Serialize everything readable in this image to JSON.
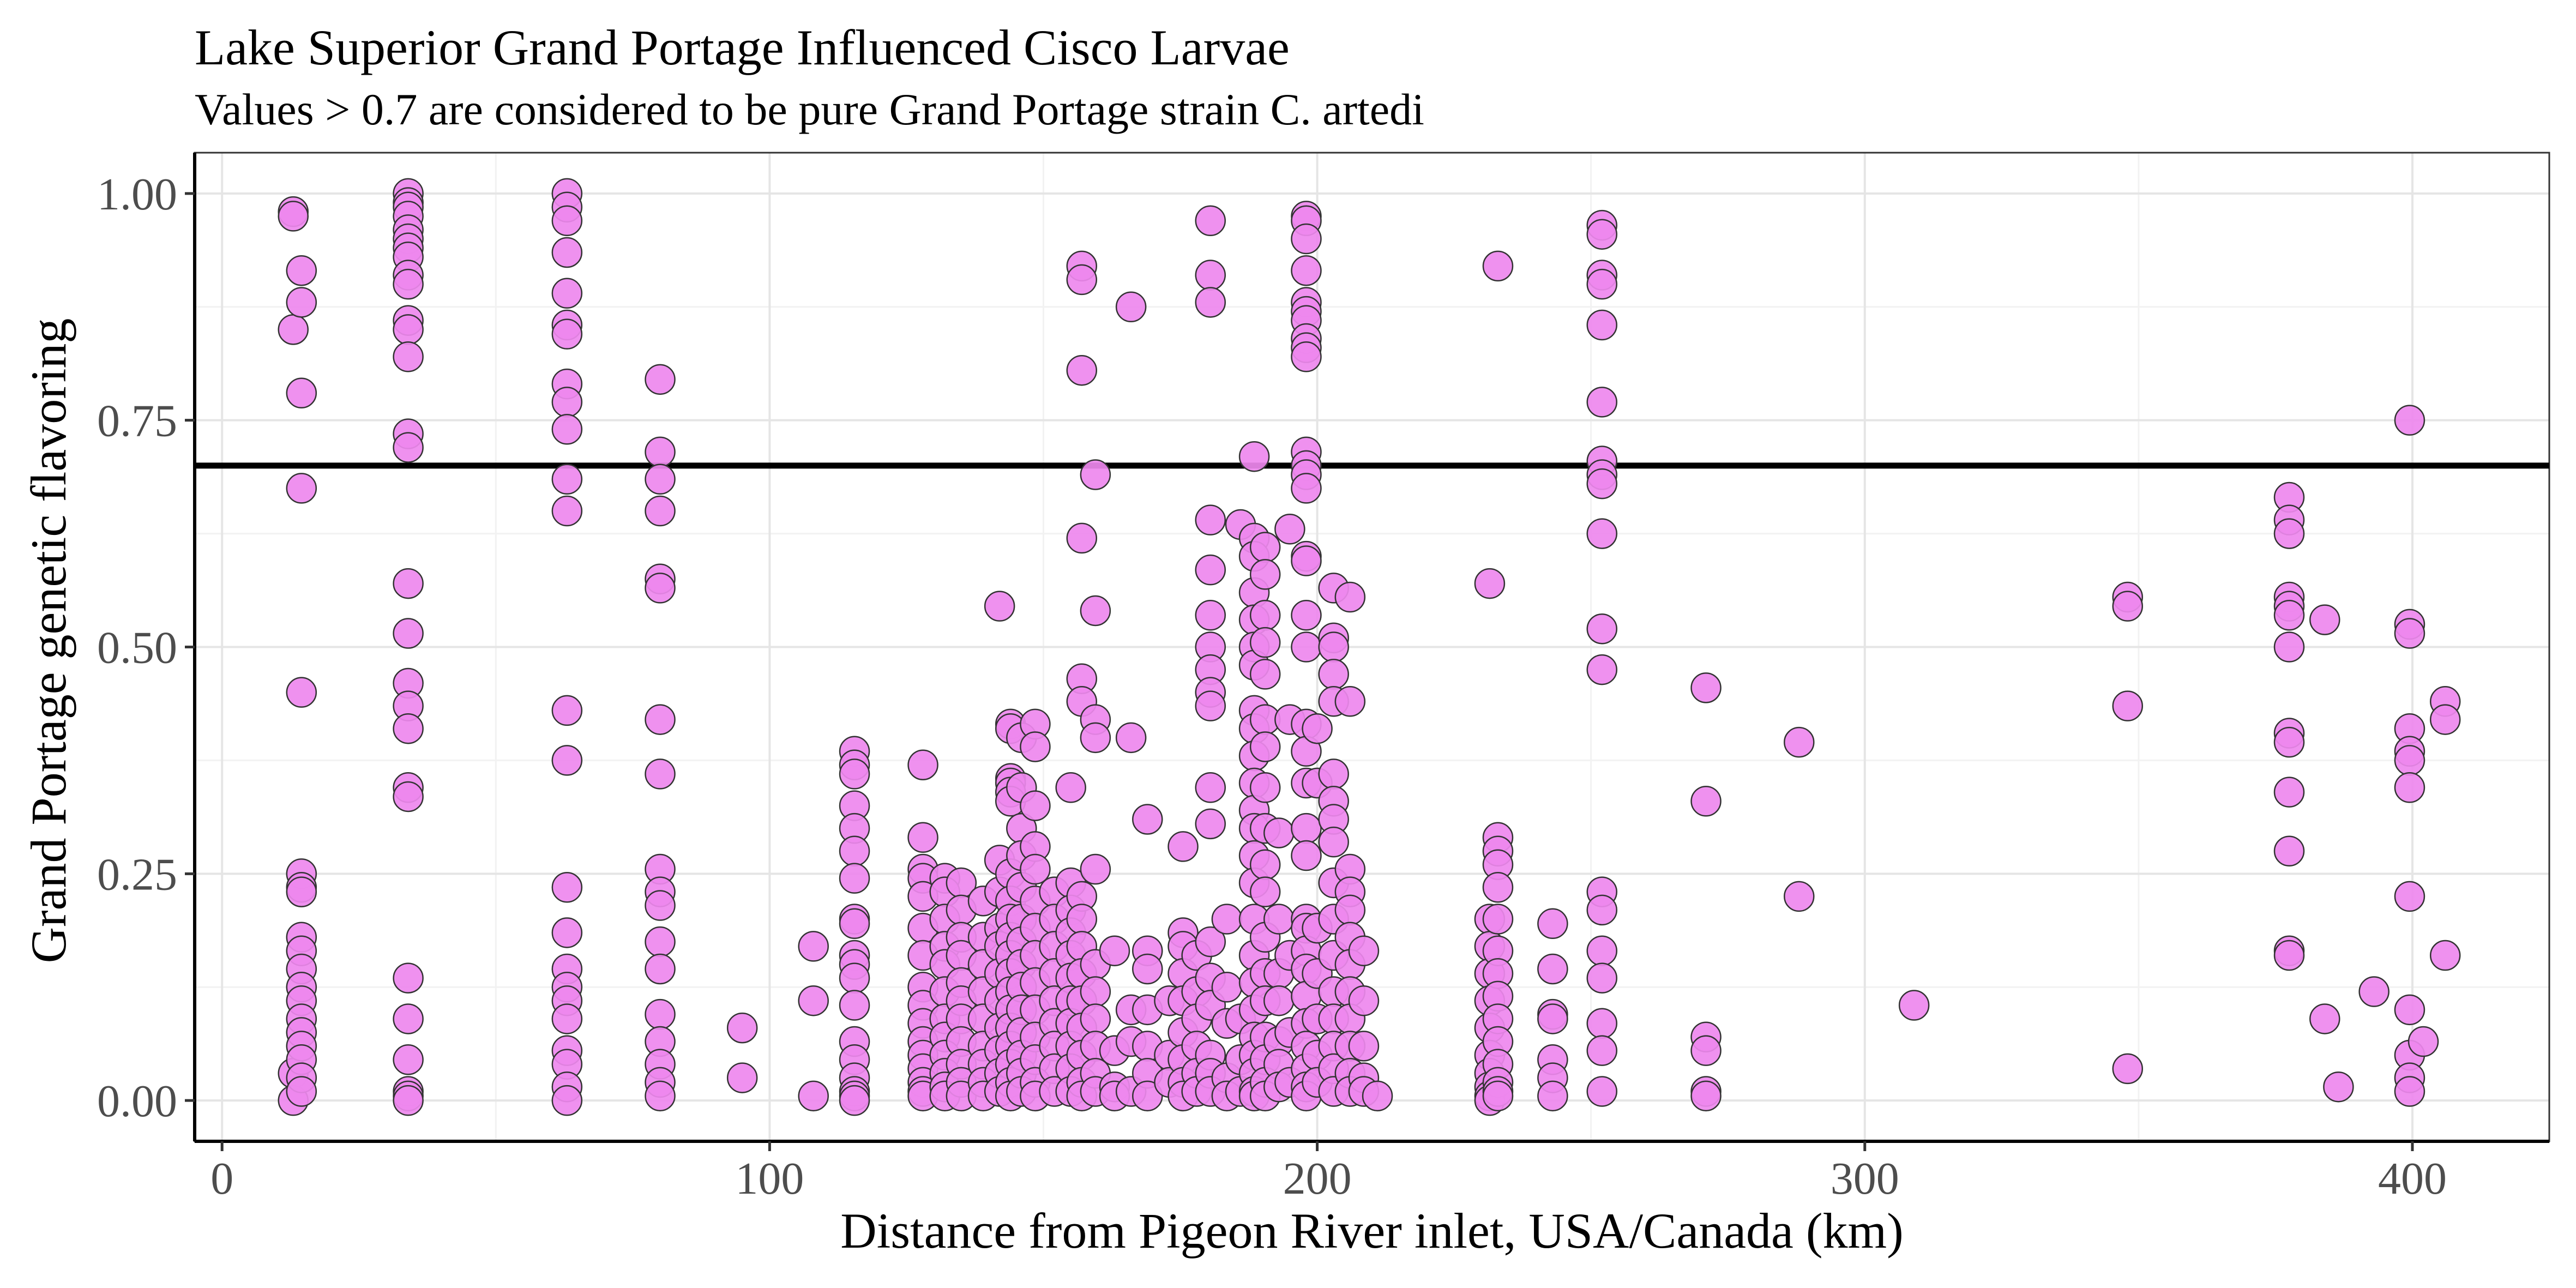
{
  "chart_data": {
    "type": "scatter",
    "title": "Lake Superior Grand Portage Influenced Cisco Larvae",
    "subtitle": "Values > 0.7 are considered to be pure Grand Portage strain C. artedi",
    "xlabel": "Distance from Pigeon River inlet, USA/Canada (km)",
    "ylabel": "Grand Portage genetic flavoring",
    "xlim": [
      -5,
      425
    ],
    "ylim": [
      -0.045,
      1.045
    ],
    "x_ticks": [
      0,
      100,
      200,
      300,
      400
    ],
    "x_tick_labels": [
      "0",
      "100",
      "200",
      "300",
      "400"
    ],
    "y_ticks": [
      0,
      0.25,
      0.5,
      0.75,
      1.0
    ],
    "y_tick_labels": [
      "0.00",
      "0.25",
      "0.50",
      "0.75",
      "1.00"
    ],
    "grid": true,
    "reference_line": {
      "y": 0.7,
      "color": "#000000"
    },
    "point_fill": "#ee88ee",
    "point_stroke": "#333333",
    "columns": [
      {
        "x": 13,
        "y": [
          0.98,
          0.975,
          0.85,
          0.03,
          0.0
        ]
      },
      {
        "x": 14.5,
        "y": [
          0.915,
          0.88,
          0.78,
          0.675,
          0.45,
          0.25,
          0.235,
          0.23,
          0.18,
          0.165,
          0.145,
          0.125,
          0.11,
          0.09,
          0.075,
          0.06,
          0.045,
          0.025,
          0.01
        ]
      },
      {
        "x": 34,
        "y": [
          1.0,
          0.99,
          0.985,
          0.975,
          0.96,
          0.95,
          0.94,
          0.93,
          0.91,
          0.9,
          0.86,
          0.85,
          0.82,
          0.735,
          0.72,
          0.57,
          0.515,
          0.46,
          0.435,
          0.41,
          0.345,
          0.335,
          0.135,
          0.09,
          0.045,
          0.01,
          0.005,
          0.0
        ]
      },
      {
        "x": 63,
        "y": [
          1.0,
          0.985,
          0.97,
          0.935,
          0.89,
          0.855,
          0.845,
          0.79,
          0.77,
          0.74,
          0.685,
          0.65,
          0.43,
          0.375,
          0.235,
          0.185,
          0.145,
          0.125,
          0.11,
          0.09,
          0.055,
          0.04,
          0.015,
          0.0
        ]
      },
      {
        "x": 80,
        "y": [
          0.795,
          0.715,
          0.685,
          0.65,
          0.575,
          0.565,
          0.42,
          0.36,
          0.255,
          0.23,
          0.215,
          0.175,
          0.145,
          0.095,
          0.065,
          0.04,
          0.02,
          0.005
        ]
      },
      {
        "x": 95,
        "y": [
          0.08,
          0.025
        ]
      },
      {
        "x": 108,
        "y": [
          0.17,
          0.11,
          0.005
        ]
      },
      {
        "x": 115.5,
        "y": [
          0.385,
          0.37,
          0.36,
          0.325,
          0.3,
          0.275,
          0.245,
          0.2,
          0.195,
          0.16,
          0.15,
          0.135,
          0.105,
          0.065,
          0.045,
          0.025,
          0.01,
          0.005,
          0.0
        ]
      },
      {
        "x": 128,
        "y": [
          0.37,
          0.29,
          0.255,
          0.245,
          0.225,
          0.19,
          0.16,
          0.125,
          0.105,
          0.085,
          0.065,
          0.05,
          0.035,
          0.02,
          0.01,
          0.005
        ]
      },
      {
        "x": 132,
        "y": [
          0.245,
          0.23,
          0.2,
          0.17,
          0.15,
          0.12,
          0.09,
          0.07,
          0.05,
          0.03,
          0.015,
          0.005
        ]
      },
      {
        "x": 135,
        "y": [
          0.24,
          0.21,
          0.18,
          0.16,
          0.13,
          0.11,
          0.09,
          0.065,
          0.04,
          0.02,
          0.005
        ]
      },
      {
        "x": 139,
        "y": [
          0.22,
          0.18,
          0.15,
          0.12,
          0.09,
          0.06,
          0.04,
          0.02,
          0.005
        ]
      },
      {
        "x": 142,
        "y": [
          0.545,
          0.265,
          0.23,
          0.19,
          0.17,
          0.14,
          0.11,
          0.08,
          0.055,
          0.03,
          0.01
        ]
      },
      {
        "x": 144,
        "y": [
          0.415,
          0.41,
          0.355,
          0.35,
          0.34,
          0.33,
          0.25,
          0.22,
          0.2,
          0.18,
          0.16,
          0.14,
          0.12,
          0.1,
          0.08,
          0.06,
          0.04,
          0.02,
          0.005
        ]
      },
      {
        "x": 146,
        "y": [
          0.4,
          0.345,
          0.3,
          0.27,
          0.235,
          0.2,
          0.175,
          0.15,
          0.125,
          0.1,
          0.075,
          0.05,
          0.03,
          0.01
        ]
      },
      {
        "x": 148.5,
        "y": [
          0.415,
          0.39,
          0.325,
          0.28,
          0.255,
          0.22,
          0.19,
          0.16,
          0.13,
          0.1,
          0.07,
          0.045,
          0.02,
          0.005
        ]
      },
      {
        "x": 152,
        "y": [
          0.23,
          0.2,
          0.17,
          0.14,
          0.11,
          0.085,
          0.06,
          0.035,
          0.01
        ]
      },
      {
        "x": 155,
        "y": [
          0.345,
          0.24,
          0.21,
          0.185,
          0.16,
          0.135,
          0.11,
          0.085,
          0.06,
          0.035,
          0.01
        ]
      },
      {
        "x": 157,
        "y": [
          0.92,
          0.905,
          0.805,
          0.62,
          0.465,
          0.44,
          0.225,
          0.2,
          0.17,
          0.14,
          0.11,
          0.08,
          0.05,
          0.02,
          0.005
        ]
      },
      {
        "x": 159.5,
        "y": [
          0.69,
          0.54,
          0.42,
          0.4,
          0.255,
          0.15,
          0.12,
          0.09,
          0.06,
          0.03,
          0.01
        ]
      },
      {
        "x": 163,
        "y": [
          0.165,
          0.055,
          0.015,
          0.005
        ]
      },
      {
        "x": 166,
        "y": [
          0.875,
          0.4,
          0.1,
          0.065,
          0.01
        ]
      },
      {
        "x": 169,
        "y": [
          0.31,
          0.165,
          0.145,
          0.1,
          0.06,
          0.03,
          0.005
        ]
      },
      {
        "x": 173,
        "y": [
          0.11,
          0.05,
          0.02
        ]
      },
      {
        "x": 175.5,
        "y": [
          0.28,
          0.185,
          0.17,
          0.14,
          0.11,
          0.075,
          0.045,
          0.02,
          0.005
        ]
      },
      {
        "x": 178,
        "y": [
          0.16,
          0.12,
          0.09,
          0.06,
          0.03,
          0.01
        ]
      },
      {
        "x": 180.5,
        "y": [
          0.97,
          0.91,
          0.88,
          0.64,
          0.585,
          0.535,
          0.5,
          0.475,
          0.45,
          0.435,
          0.345,
          0.305,
          0.175,
          0.135,
          0.105,
          0.05,
          0.03,
          0.01
        ]
      },
      {
        "x": 183.5,
        "y": [
          0.2,
          0.125,
          0.085,
          0.025,
          0.005
        ]
      },
      {
        "x": 186,
        "y": [
          0.635,
          0.09,
          0.045,
          0.01
        ]
      },
      {
        "x": 188.5,
        "y": [
          0.71,
          0.62,
          0.6,
          0.56,
          0.53,
          0.5,
          0.48,
          0.43,
          0.41,
          0.38,
          0.35,
          0.32,
          0.3,
          0.27,
          0.24,
          0.2,
          0.16,
          0.13,
          0.1,
          0.07,
          0.05,
          0.03,
          0.01,
          0.005
        ]
      },
      {
        "x": 190.5,
        "y": [
          0.61,
          0.58,
          0.535,
          0.505,
          0.47,
          0.42,
          0.39,
          0.345,
          0.3,
          0.26,
          0.23,
          0.18,
          0.14,
          0.11,
          0.07,
          0.045,
          0.02,
          0.005
        ]
      },
      {
        "x": 193,
        "y": [
          0.295,
          0.2,
          0.14,
          0.11,
          0.065,
          0.04,
          0.015
        ]
      },
      {
        "x": 195,
        "y": [
          0.63,
          0.42,
          0.16,
          0.075,
          0.02
        ]
      },
      {
        "x": 198,
        "y": [
          0.975,
          0.97,
          0.95,
          0.915,
          0.88,
          0.87,
          0.86,
          0.84,
          0.83,
          0.82,
          0.715,
          0.7,
          0.69,
          0.675,
          0.6,
          0.595,
          0.535,
          0.5,
          0.415,
          0.385,
          0.35,
          0.3,
          0.27,
          0.2,
          0.19,
          0.165,
          0.145,
          0.115,
          0.085,
          0.06,
          0.035,
          0.015,
          0.005
        ]
      },
      {
        "x": 200,
        "y": [
          0.41,
          0.35,
          0.19,
          0.14,
          0.09,
          0.05,
          0.02
        ]
      },
      {
        "x": 203,
        "y": [
          0.565,
          0.51,
          0.5,
          0.47,
          0.44,
          0.36,
          0.33,
          0.31,
          0.285,
          0.24,
          0.2,
          0.16,
          0.12,
          0.09,
          0.06,
          0.035,
          0.01
        ]
      },
      {
        "x": 206,
        "y": [
          0.555,
          0.44,
          0.255,
          0.23,
          0.21,
          0.18,
          0.15,
          0.12,
          0.09,
          0.06,
          0.03,
          0.01
        ]
      },
      {
        "x": 208.5,
        "y": [
          0.165,
          0.11,
          0.06,
          0.025,
          0.01
        ]
      },
      {
        "x": 211,
        "y": [
          0.005
        ]
      },
      {
        "x": 231.5,
        "y": [
          0.57,
          0.2,
          0.17,
          0.14,
          0.11,
          0.08,
          0.05,
          0.03,
          0.015,
          0.005,
          0.0
        ]
      },
      {
        "x": 233,
        "y": [
          0.92,
          0.29,
          0.275,
          0.26,
          0.235,
          0.2,
          0.165,
          0.14,
          0.115,
          0.09,
          0.065,
          0.04,
          0.02,
          0.01,
          0.005
        ]
      },
      {
        "x": 243,
        "y": [
          0.195,
          0.145,
          0.095,
          0.09,
          0.045,
          0.025,
          0.005
        ]
      },
      {
        "x": 252,
        "y": [
          0.965,
          0.955,
          0.91,
          0.9,
          0.855,
          0.77,
          0.705,
          0.69,
          0.68,
          0.625,
          0.52,
          0.475,
          0.23,
          0.21,
          0.165,
          0.135,
          0.085,
          0.055,
          0.01
        ]
      },
      {
        "x": 271,
        "y": [
          0.455,
          0.33,
          0.07,
          0.055,
          0.01,
          0.005
        ]
      },
      {
        "x": 288,
        "y": [
          0.395,
          0.225
        ]
      },
      {
        "x": 309,
        "y": [
          0.105
        ]
      },
      {
        "x": 348,
        "y": [
          0.555,
          0.545,
          0.435,
          0.035
        ]
      },
      {
        "x": 377.5,
        "y": [
          0.665,
          0.64,
          0.625,
          0.555,
          0.545,
          0.535,
          0.5,
          0.405,
          0.395,
          0.34,
          0.275,
          0.165,
          0.16
        ]
      },
      {
        "x": 384,
        "y": [
          0.53,
          0.09
        ]
      },
      {
        "x": 386.5,
        "y": [
          0.015
        ]
      },
      {
        "x": 393,
        "y": [
          0.12
        ]
      },
      {
        "x": 399.5,
        "y": [
          0.75,
          0.525,
          0.515,
          0.41,
          0.385,
          0.375,
          0.345,
          0.225,
          0.1,
          0.05,
          0.025,
          0.01
        ]
      },
      {
        "x": 402,
        "y": [
          0.065
        ]
      },
      {
        "x": 406,
        "y": [
          0.44,
          0.42,
          0.16
        ]
      }
    ]
  }
}
